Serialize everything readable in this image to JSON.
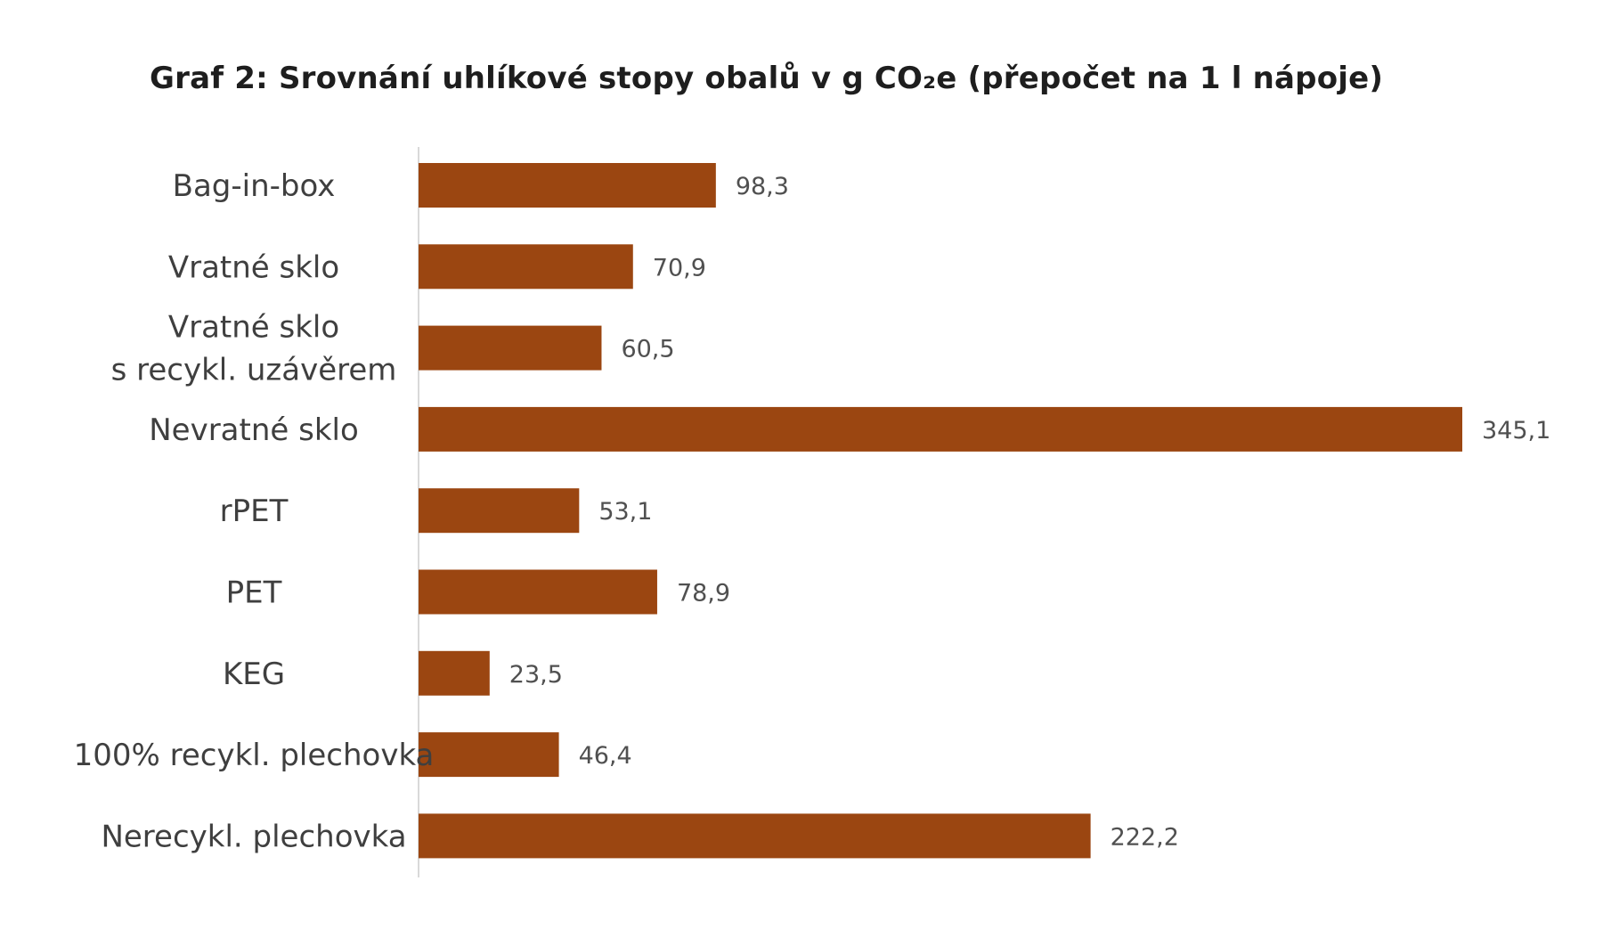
{
  "chart_data": {
    "type": "bar",
    "orientation": "horizontal",
    "title": "Graf 2: Srovnání uhlíkové stopy obalů v g CO₂e (přepočet na 1 l nápoje)",
    "categories": [
      "Bag-in-box",
      "Vratné sklo",
      "Vratné sklo\ns recykl. uzávěrem",
      "Nevratné sklo",
      "rPET",
      "PET",
      "KEG",
      "100% recykl. plechovka",
      "Nerecykl. plechovka"
    ],
    "values": [
      98.3,
      70.9,
      60.5,
      345.1,
      53.1,
      78.9,
      23.5,
      46.4,
      222.2
    ],
    "value_labels": [
      "98,3",
      "70,9",
      "60,5",
      "345,1",
      "53,1",
      "78,9",
      "23,5",
      "46,4",
      "222,2"
    ],
    "xlabel": "",
    "ylabel": "",
    "xlim": [
      0,
      345.1
    ],
    "grid": false,
    "legend": "none",
    "colors": {
      "bar": "#9b4611",
      "axis": "#d9d9d9",
      "category_text": "#3f3f3f",
      "value_text": "#505050"
    }
  }
}
